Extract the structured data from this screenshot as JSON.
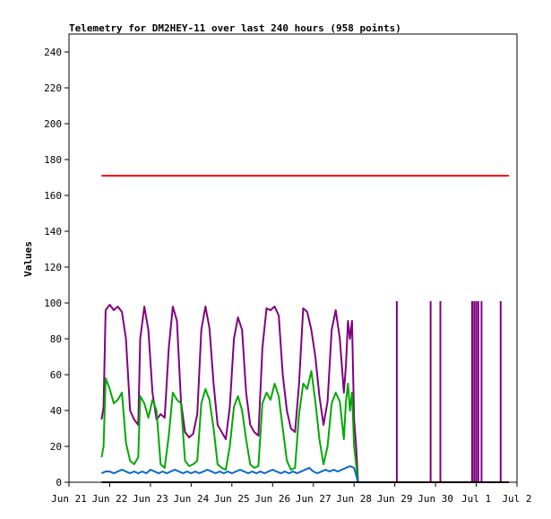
{
  "chart_data": {
    "type": "line",
    "title": "Telemetry for DM2HEY-11 over last 240 hours (958 points)",
    "xlabel": "",
    "ylabel": "Values",
    "ylim": [
      0,
      250
    ],
    "yticks": [
      0,
      20,
      40,
      60,
      80,
      100,
      120,
      140,
      160,
      180,
      200,
      220,
      240
    ],
    "xlim_days": [
      0,
      11
    ],
    "xtick_labels": [
      "Jun 21",
      "Jun 22",
      "Jun 23",
      "Jun 24",
      "Jun 25",
      "Jun 26",
      "Jun 27",
      "Jun 28",
      "Jun 29",
      "Jun 30",
      "Jul 1",
      "Jul 2"
    ],
    "grid": false,
    "legend": "none",
    "series": [
      {
        "color": "#ff0000",
        "x": [
          0.8,
          10.8
        ],
        "values": [
          171,
          171
        ]
      },
      {
        "color": "#800080",
        "x": [
          0.8,
          0.85,
          0.9,
          1.0,
          1.1,
          1.2,
          1.3,
          1.4,
          1.5,
          1.6,
          1.7,
          1.75,
          1.85,
          1.95,
          2.05,
          2.15,
          2.25,
          2.35,
          2.45,
          2.55,
          2.65,
          2.75,
          2.85,
          2.95,
          3.05,
          3.15,
          3.25,
          3.35,
          3.45,
          3.55,
          3.65,
          3.75,
          3.85,
          3.95,
          4.05,
          4.15,
          4.25,
          4.35,
          4.45,
          4.55,
          4.65,
          4.75,
          4.85,
          4.95,
          5.05,
          5.15,
          5.25,
          5.35,
          5.45,
          5.55,
          5.65,
          5.75,
          5.85,
          5.95,
          6.05,
          6.15,
          6.25,
          6.35,
          6.45,
          6.55,
          6.65,
          6.75,
          6.8,
          6.85,
          6.9,
          6.95,
          7.0,
          7.05,
          7.1
        ],
        "values": [
          35,
          42,
          96,
          99,
          96,
          98,
          95,
          80,
          40,
          35,
          32,
          80,
          98,
          85,
          50,
          35,
          38,
          36,
          75,
          98,
          90,
          45,
          28,
          25,
          27,
          38,
          85,
          98,
          86,
          55,
          32,
          28,
          24,
          42,
          80,
          92,
          85,
          50,
          32,
          28,
          26,
          75,
          97,
          96,
          98,
          93,
          60,
          40,
          30,
          28,
          55,
          97,
          95,
          85,
          70,
          48,
          32,
          45,
          85,
          96,
          80,
          50,
          65,
          90,
          80,
          90,
          35,
          20,
          0
        ]
      },
      {
        "color": "#00aa00",
        "x": [
          0.8,
          0.85,
          0.9,
          1.0,
          1.1,
          1.2,
          1.3,
          1.4,
          1.5,
          1.6,
          1.7,
          1.75,
          1.85,
          1.95,
          2.05,
          2.15,
          2.25,
          2.35,
          2.45,
          2.55,
          2.65,
          2.75,
          2.85,
          2.95,
          3.05,
          3.15,
          3.25,
          3.35,
          3.45,
          3.55,
          3.65,
          3.75,
          3.85,
          3.95,
          4.05,
          4.15,
          4.25,
          4.35,
          4.45,
          4.55,
          4.65,
          4.75,
          4.85,
          4.95,
          5.05,
          5.15,
          5.25,
          5.35,
          5.45,
          5.55,
          5.65,
          5.75,
          5.85,
          5.95,
          6.05,
          6.15,
          6.25,
          6.35,
          6.45,
          6.55,
          6.65,
          6.75,
          6.8,
          6.85,
          6.9,
          6.95,
          7.0,
          7.05,
          7.1
        ],
        "values": [
          14,
          20,
          58,
          52,
          44,
          46,
          50,
          22,
          12,
          10,
          14,
          48,
          44,
          36,
          46,
          40,
          10,
          8,
          26,
          50,
          46,
          44,
          12,
          9,
          10,
          12,
          44,
          52,
          46,
          30,
          10,
          8,
          7,
          20,
          42,
          48,
          40,
          24,
          10,
          8,
          9,
          44,
          50,
          46,
          55,
          48,
          30,
          12,
          7,
          8,
          38,
          55,
          52,
          62,
          45,
          24,
          10,
          20,
          44,
          50,
          45,
          24,
          45,
          55,
          40,
          50,
          20,
          10,
          0
        ]
      },
      {
        "color": "#0066cc",
        "x": [
          0.8,
          0.9,
          1.0,
          1.1,
          1.2,
          1.3,
          1.4,
          1.5,
          1.6,
          1.7,
          1.8,
          1.9,
          2.0,
          2.1,
          2.2,
          2.3,
          2.4,
          2.5,
          2.6,
          2.7,
          2.8,
          2.9,
          3.0,
          3.1,
          3.2,
          3.3,
          3.4,
          3.5,
          3.6,
          3.7,
          3.8,
          3.9,
          4.0,
          4.1,
          4.2,
          4.3,
          4.4,
          4.5,
          4.6,
          4.7,
          4.8,
          4.9,
          5.0,
          5.1,
          5.2,
          5.3,
          5.4,
          5.5,
          5.6,
          5.7,
          5.8,
          5.9,
          6.0,
          6.1,
          6.2,
          6.3,
          6.4,
          6.5,
          6.6,
          6.7,
          6.8,
          6.9,
          7.0,
          7.05,
          7.1
        ],
        "values": [
          5,
          6,
          6,
          5,
          6,
          7,
          6,
          5,
          6,
          5,
          6,
          5,
          7,
          6,
          5,
          6,
          5,
          6,
          7,
          6,
          5,
          6,
          5,
          6,
          5,
          6,
          7,
          6,
          5,
          6,
          5,
          6,
          5,
          6,
          7,
          6,
          5,
          6,
          5,
          6,
          5,
          6,
          7,
          6,
          5,
          6,
          5,
          6,
          5,
          6,
          7,
          8,
          6,
          5,
          6,
          7,
          6,
          7,
          6,
          7,
          8,
          9,
          8,
          4,
          0
        ]
      },
      {
        "color": "#800080",
        "type": "spikes",
        "x": [
          8.05,
          8.88,
          9.12,
          9.9,
          9.95,
          10.0,
          10.05,
          10.13,
          10.6
        ],
        "values": [
          101,
          101,
          101,
          101,
          101,
          101,
          101,
          101,
          101
        ]
      },
      {
        "color": "#000000",
        "x": [
          0.8,
          10.8
        ],
        "values": [
          0,
          0
        ]
      }
    ]
  }
}
